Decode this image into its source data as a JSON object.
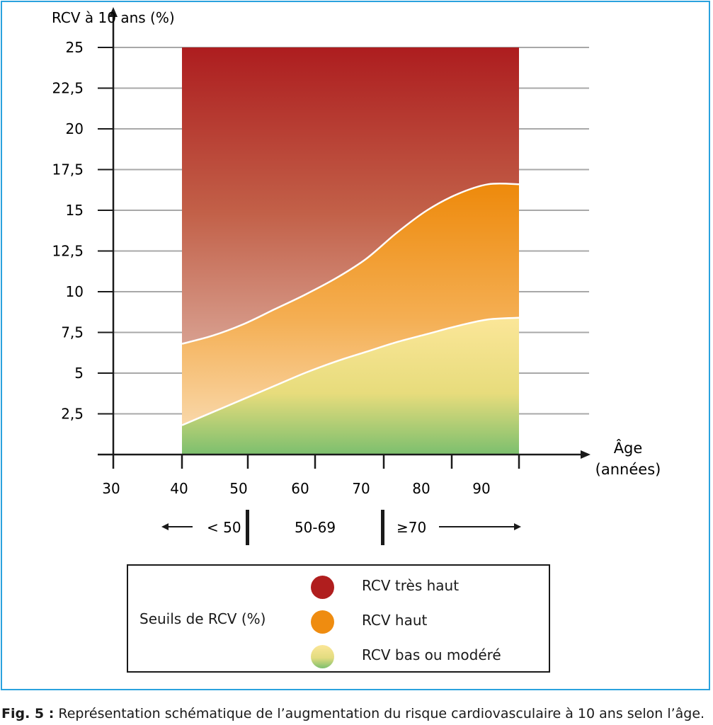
{
  "chart_data": {
    "type": "area",
    "ylabel": "RCV à 10 ans (%)",
    "xlabel_line1": "Âge",
    "xlabel_line2": "(années)",
    "y_ticks": [
      "25",
      "22,5",
      "20",
      "17,5",
      "15",
      "12,5",
      "10",
      "7,5",
      "5",
      "2,5"
    ],
    "y_tick_values": [
      25,
      22.5,
      20,
      17.5,
      15,
      12.5,
      10,
      7.5,
      5,
      2.5
    ],
    "x_ticks": [
      "30",
      "40",
      "50",
      "60",
      "70",
      "80",
      "90"
    ],
    "ylim": [
      0,
      25
    ],
    "grid": true,
    "upper_threshold_curve": {
      "x": [
        40,
        45,
        50,
        55,
        60,
        65,
        70,
        75,
        80,
        85,
        90,
        95
      ],
      "y": [
        6.8,
        7.3,
        8.0,
        8.9,
        9.8,
        10.8,
        12.0,
        13.6,
        15.0,
        16.0,
        16.6,
        16.6
      ]
    },
    "lower_threshold_curve": {
      "x": [
        40,
        45,
        50,
        55,
        60,
        65,
        70,
        75,
        80,
        85,
        90,
        95
      ],
      "y": [
        1.8,
        2.6,
        3.4,
        4.2,
        5.0,
        5.7,
        6.3,
        6.9,
        7.4,
        7.9,
        8.3,
        8.4
      ]
    },
    "series": [
      {
        "name": "RCV très haut",
        "color": "#b01e1e"
      },
      {
        "name": "RCV haut",
        "color": "#ef8c10"
      },
      {
        "name": "RCV bas ou modéré",
        "color": "#f7e27a"
      }
    ],
    "age_groups": [
      "< 50",
      "50-69",
      "≥70"
    ]
  },
  "legend": {
    "title": "Seuils de RCV (%)",
    "items": [
      {
        "label": "RCV très haut",
        "color": "#b01e1e"
      },
      {
        "label": "RCV haut",
        "color": "#ef8c10"
      },
      {
        "label": "RCV bas ou modéré",
        "color": "#f7e27a"
      }
    ]
  },
  "caption": {
    "prefix": "Fig. 5 :",
    "text": " Représentation schématique de l’augmentation du risque cardiovasculaire à 10 ans selon l’âge."
  }
}
